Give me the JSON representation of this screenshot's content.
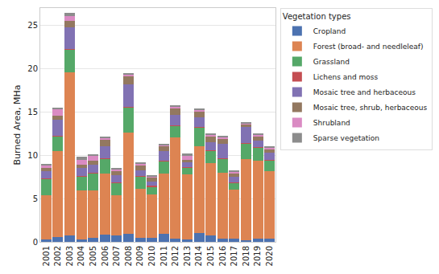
{
  "chart_data": {
    "type": "bar",
    "stacked": true,
    "y_label": "Burned Area, MHa",
    "legend_title": "Vegetation types",
    "legend": "right",
    "grid": true,
    "categories": [
      "2001",
      "2002",
      "2003",
      "2004",
      "2005",
      "2006",
      "2007",
      "2008",
      "2009",
      "2010",
      "2011",
      "2012",
      "2013",
      "2014",
      "2015",
      "2016",
      "2017",
      "2018",
      "2019",
      "2020"
    ],
    "ylim": [
      0,
      27
    ],
    "yticks": [
      0,
      5,
      10,
      15,
      20,
      25
    ],
    "series": [
      {
        "name": "Cropland",
        "color": "#4c72b0",
        "values": [
          0.3,
          0.6,
          0.7,
          0.3,
          0.5,
          0.8,
          0.7,
          0.9,
          0.5,
          0.5,
          0.9,
          0.4,
          0.3,
          1.0,
          0.7,
          0.4,
          0.4,
          0.2,
          0.4,
          0.4
        ]
      },
      {
        "name": "Forest (broad- and needleleaf)",
        "color": "#dd8452",
        "values": [
          5.1,
          9.9,
          18.9,
          5.6,
          5.4,
          7.1,
          4.7,
          11.7,
          5.6,
          5.0,
          7.0,
          11.7,
          7.5,
          10.0,
          8.4,
          7.6,
          5.6,
          9.4,
          9.0,
          7.8
        ]
      },
      {
        "name": "Grassland",
        "color": "#55a868",
        "values": [
          1.9,
          1.7,
          2.6,
          1.7,
          2.0,
          1.7,
          1.4,
          2.9,
          1.5,
          0.9,
          1.4,
          1.3,
          0.8,
          2.2,
          1.4,
          1.6,
          0.8,
          1.8,
          1.5,
          1.2
        ]
      },
      {
        "name": "Lichens and moss",
        "color": "#c44e52",
        "values": [
          0.05,
          0.05,
          0.05,
          0.05,
          0.05,
          0.05,
          0.05,
          0.05,
          0.05,
          0.05,
          0.05,
          0.05,
          0.05,
          0.05,
          0.05,
          0.05,
          0.05,
          0.05,
          0.05,
          0.05
        ]
      },
      {
        "name": "Mosaic tree and herbaceous",
        "color": "#8172b3",
        "values": [
          0.85,
          1.85,
          2.55,
          0.85,
          1.0,
          1.35,
          0.85,
          2.65,
          0.65,
          0.55,
          1.15,
          1.25,
          0.55,
          1.15,
          0.95,
          1.65,
          0.65,
          1.85,
          0.75,
          0.85
        ]
      },
      {
        "name": "Mosaic tree, shrub, herbaceous",
        "color": "#937860",
        "values": [
          0.3,
          0.5,
          0.7,
          0.4,
          0.45,
          0.8,
          0.5,
          0.9,
          0.5,
          0.4,
          0.5,
          0.7,
          0.3,
          0.6,
          0.7,
          0.6,
          0.4,
          0.3,
          0.5,
          0.4
        ]
      },
      {
        "name": "Shrubland",
        "color": "#da8bc3",
        "values": [
          0.35,
          0.7,
          0.6,
          0.6,
          0.5,
          0.2,
          0.2,
          0.2,
          0.2,
          0.2,
          0.2,
          0.2,
          0.4,
          0.3,
          0.2,
          0.2,
          0.2,
          0.1,
          0.2,
          0.2
        ]
      },
      {
        "name": "Sparse vegetation",
        "color": "#8c8c8c",
        "values": [
          0.15,
          0.2,
          0.3,
          0.3,
          0.2,
          0.1,
          0.1,
          0.1,
          0.1,
          0.1,
          0.1,
          0.2,
          0.3,
          0.1,
          0.1,
          0.1,
          0.1,
          0.1,
          0.1,
          0.1
        ]
      }
    ]
  }
}
